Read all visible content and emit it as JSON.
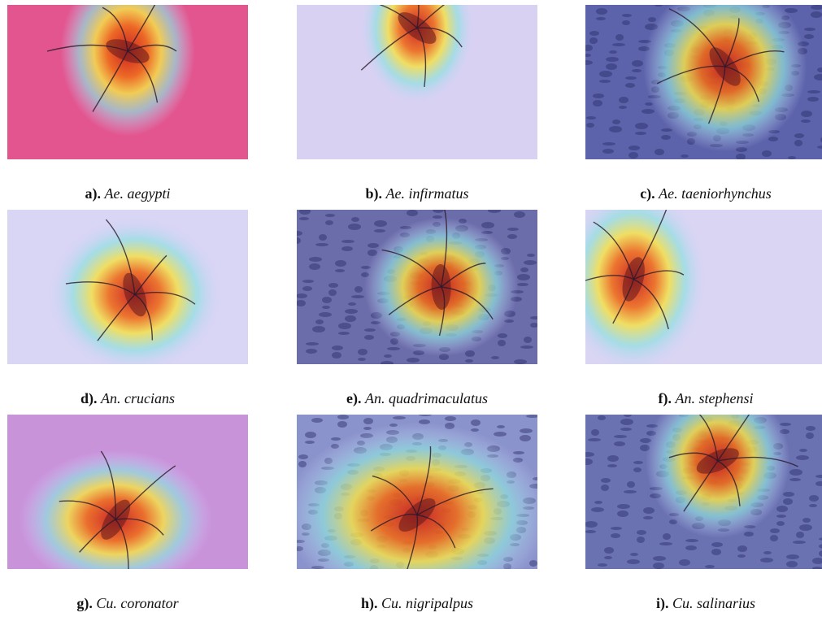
{
  "figure": {
    "panels": [
      {
        "label": "a).",
        "name": "Ae. aegypti"
      },
      {
        "label": "b).",
        "name": "Ae. infirmatus"
      },
      {
        "label": "c).",
        "name": "Ae. taeniorhynchus"
      },
      {
        "label": "d).",
        "name": "An. crucians"
      },
      {
        "label": "e).",
        "name": "An. quadrimaculatus"
      },
      {
        "label": "f).",
        "name": "An. stephensi"
      },
      {
        "label": "g).",
        "name": "Cu. coronator"
      },
      {
        "label": "h).",
        "name": "Cu. nigripalpus"
      },
      {
        "label": "i).",
        "name": "Cu. salinarius"
      }
    ]
  }
}
